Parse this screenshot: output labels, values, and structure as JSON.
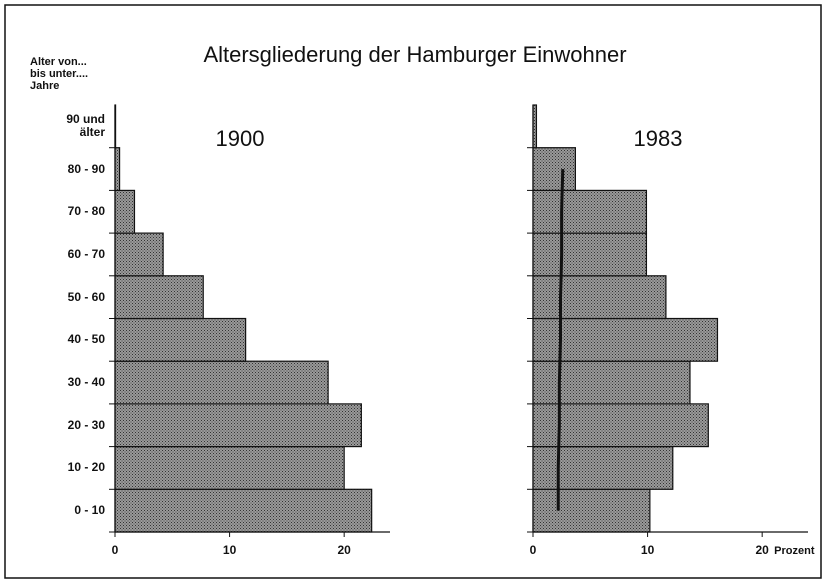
{
  "title": "Altersgliederung der Hamburger Einwohner",
  "y_axis_label": [
    "Alter von...",
    "bis unter....",
    "Jahre"
  ],
  "chart_data": [
    {
      "type": "bar",
      "orientation": "horizontal",
      "title": "1900",
      "categories": [
        "0 - 10",
        "10 - 20",
        "20 - 30",
        "30 - 40",
        "40 - 50",
        "50 - 60",
        "60 - 70",
        "70 - 80",
        "80 - 90",
        "90 und älter"
      ],
      "values": [
        22.4,
        20.0,
        21.5,
        18.6,
        11.4,
        7.7,
        4.2,
        1.7,
        0.4,
        0.05
      ],
      "xlim": [
        0,
        24
      ],
      "xticks": [
        0,
        10,
        20
      ],
      "color": "#8c8c8c"
    },
    {
      "type": "bar",
      "orientation": "horizontal",
      "title": "1983",
      "values": [
        10.2,
        12.2,
        15.3,
        13.7,
        16.1,
        11.6,
        9.9,
        9.9,
        3.7,
        0.3
      ],
      "line_values": [
        2.2,
        2.2,
        2.3,
        2.3,
        2.4,
        2.4,
        2.5,
        2.5,
        2.6
      ],
      "xlim": [
        0,
        24
      ],
      "xticks": [
        0,
        10,
        20
      ],
      "x_axis_label": "Prozent",
      "color": "#8c8c8c"
    }
  ]
}
